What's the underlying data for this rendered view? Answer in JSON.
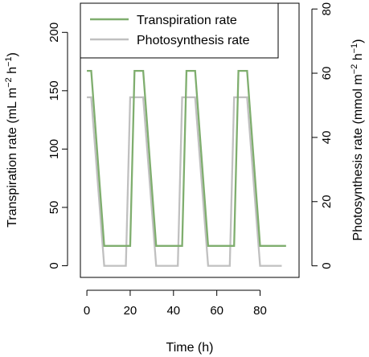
{
  "chart_data": {
    "type": "line",
    "xlabel": "Time (h)",
    "ylabel_left": {
      "text": "Transpiration rate (mL m",
      "sup1": "−2",
      "mid": " h",
      "sup2": "−1",
      "end": ")"
    },
    "ylabel_right": {
      "text": "Photosynthesis rate (mmol m",
      "sup1": "−2",
      "mid": " h",
      "sup2": "−1",
      "end": ")"
    },
    "xlim": [
      -3,
      98
    ],
    "ylim_left": [
      -10,
      225
    ],
    "ylim_right": [
      -3.6,
      81.8
    ],
    "x_ticks": [
      0,
      20,
      40,
      60,
      80
    ],
    "y_left_ticks": [
      0,
      50,
      100,
      150,
      200
    ],
    "y_right_ticks": [
      0,
      20,
      40,
      60,
      80
    ],
    "grid": false,
    "legend_position": "top-center",
    "series": [
      {
        "name": "Transpiration rate",
        "axis": "left",
        "color": "#7fae6e",
        "x": [
          0,
          2,
          8,
          16,
          20,
          22,
          26,
          32,
          40,
          44,
          46,
          50,
          56,
          64,
          68,
          70,
          74,
          80,
          88,
          92
        ],
        "y": [
          167,
          167,
          17,
          17,
          17,
          167,
          167,
          17,
          17,
          17,
          167,
          167,
          17,
          17,
          17,
          167,
          167,
          17,
          17,
          17
        ]
      },
      {
        "name": "Photosynthesis rate",
        "axis": "right",
        "color": "#c0c0c0",
        "x": [
          0,
          2,
          8,
          16,
          18,
          20,
          26,
          32,
          40,
          42,
          44,
          50,
          56,
          64,
          66,
          68,
          74,
          80,
          88,
          90
        ],
        "y": [
          52.5,
          52.5,
          0,
          0,
          0,
          52.5,
          52.5,
          0,
          0,
          0,
          52.5,
          52.5,
          0,
          0,
          0,
          52.5,
          52.5,
          0,
          0,
          0
        ]
      }
    ]
  }
}
